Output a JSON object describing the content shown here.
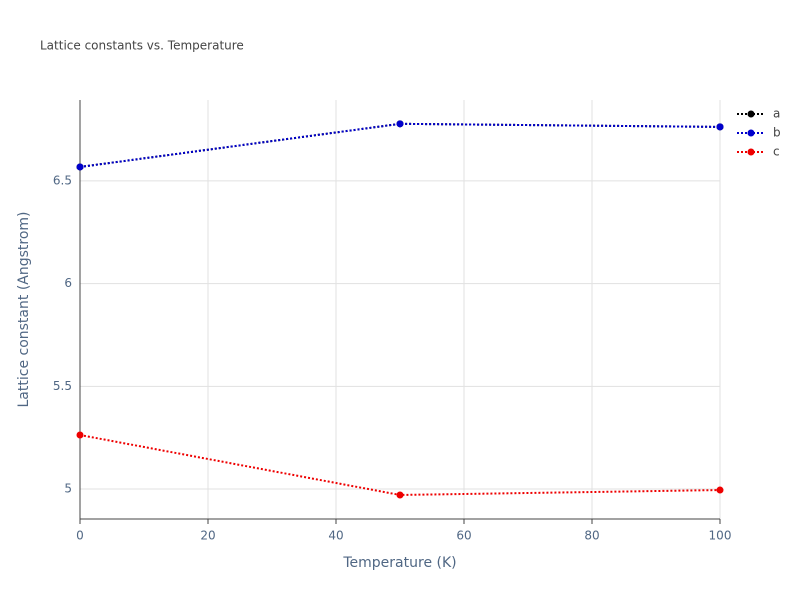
{
  "chart_data": {
    "type": "line",
    "title": "Lattice constants vs. Temperature",
    "x_label": "Temperature (K)",
    "y_label": "Lattice constant (Angstrom)",
    "x": [
      0,
      50,
      100
    ],
    "series": [
      {
        "name": "a",
        "color": "#000000",
        "values": [
          6.568,
          6.778,
          6.763
        ]
      },
      {
        "name": "b",
        "color": "#0000cc",
        "values": [
          6.568,
          6.778,
          6.763
        ]
      },
      {
        "name": "c",
        "color": "#ee0000",
        "values": [
          5.263,
          4.971,
          4.995
        ]
      }
    ],
    "xlim": [
      0,
      100
    ],
    "xticks": [
      0,
      20,
      40,
      60,
      80,
      100
    ],
    "ylim": [
      4.854,
      6.894
    ],
    "yticks": [
      5,
      5.5,
      6,
      6.5
    ],
    "grid": true,
    "legend": "top-right",
    "line_style": "dotted"
  }
}
